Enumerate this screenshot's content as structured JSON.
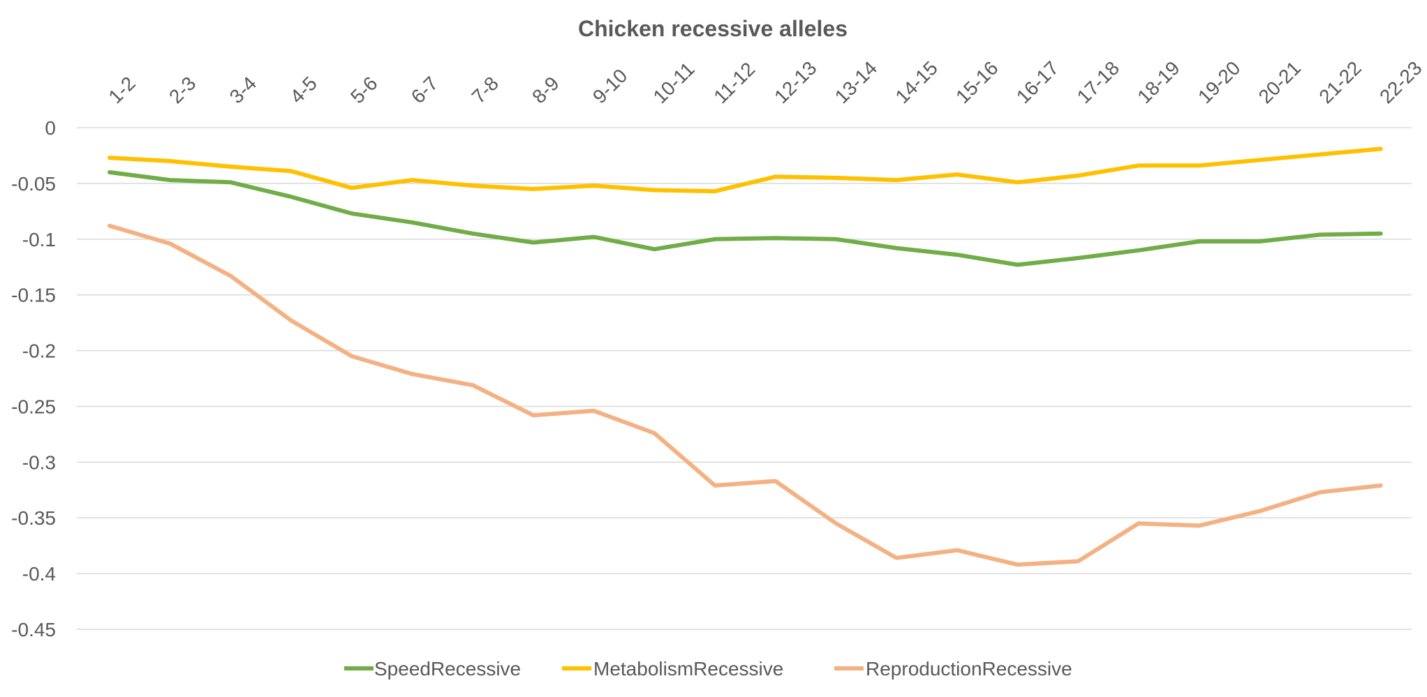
{
  "chart_data": {
    "type": "line",
    "title": "Chicken recessive alleles",
    "xlabel": "",
    "ylabel": "",
    "categories": [
      "1-2",
      "2-3",
      "3-4",
      "4-5",
      "5-6",
      "6-7",
      "7-8",
      "8-9",
      "9-10",
      "10-11",
      "11-12",
      "12-13",
      "13-14",
      "14-15",
      "15-16",
      "16-17",
      "17-18",
      "18-19",
      "19-20",
      "20-21",
      "21-22",
      "22-23"
    ],
    "yticks": [
      "0",
      "-0.05",
      "-0.1",
      "-0.15",
      "-0.2",
      "-0.25",
      "-0.3",
      "-0.35",
      "-0.4",
      "-0.45"
    ],
    "ylim": [
      -0.45,
      0
    ],
    "grid": true,
    "legend_position": "bottom",
    "series": [
      {
        "name": "SpeedRecessive",
        "color": "#70ad47",
        "values": [
          -0.04,
          -0.047,
          -0.049,
          -0.062,
          -0.077,
          -0.085,
          -0.095,
          -0.103,
          -0.098,
          -0.109,
          -0.1,
          -0.099,
          -0.1,
          -0.108,
          -0.114,
          -0.123,
          -0.117,
          -0.11,
          -0.102,
          -0.102,
          -0.096,
          -0.095
        ]
      },
      {
        "name": "MetabolismRecessive",
        "color": "#ffc000",
        "values": [
          -0.027,
          -0.03,
          -0.035,
          -0.039,
          -0.054,
          -0.047,
          -0.052,
          -0.055,
          -0.052,
          -0.056,
          -0.057,
          -0.044,
          -0.045,
          -0.047,
          -0.042,
          -0.049,
          -0.043,
          -0.034,
          -0.034,
          -0.029,
          -0.024,
          -0.019
        ]
      },
      {
        "name": "ReproductionRecessive",
        "color": "#f4b183",
        "values": [
          -0.088,
          -0.104,
          -0.133,
          -0.173,
          -0.205,
          -0.221,
          -0.231,
          -0.258,
          -0.254,
          -0.274,
          -0.321,
          -0.317,
          -0.355,
          -0.386,
          -0.379,
          -0.392,
          -0.389,
          -0.355,
          -0.357,
          -0.344,
          -0.327,
          -0.321
        ]
      }
    ]
  }
}
